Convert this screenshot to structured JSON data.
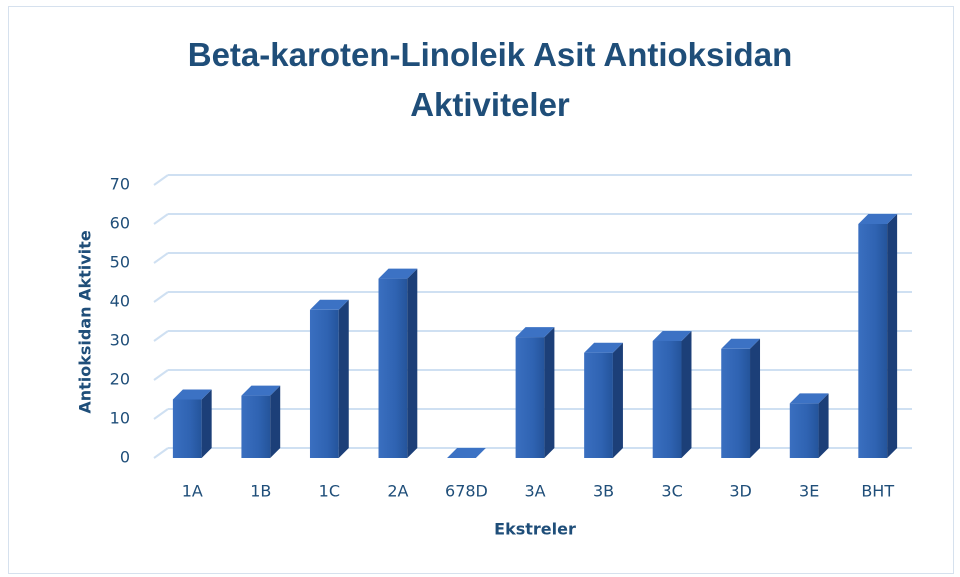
{
  "chart_data": {
    "type": "bar",
    "title": "Beta-karoten-Linoleik Asit Antioksidan Aktiviteler",
    "xlabel": "Ekstreler",
    "ylabel": "Antioksidan Aktivite",
    "categories": [
      "1A",
      "1B",
      "1C",
      "2A",
      "678D",
      "3A",
      "3B",
      "3C",
      "3D",
      "3E",
      "BHT"
    ],
    "values": [
      15,
      16,
      38,
      46,
      0,
      31,
      27,
      30,
      28,
      14,
      60
    ],
    "color": "#2f63b2",
    "ylim": [
      0,
      70
    ],
    "yticks": [
      0,
      10,
      20,
      30,
      40,
      50,
      60,
      70
    ],
    "grid": true
  }
}
